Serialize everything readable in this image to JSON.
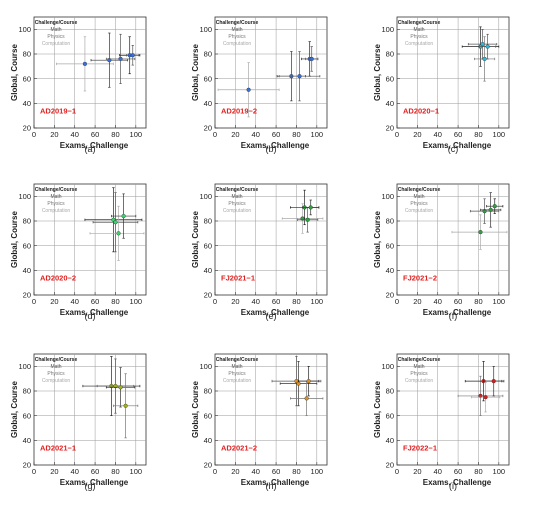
{
  "figure": {
    "legend_entries": [
      "Challenge/Course",
      "Math",
      "Physics",
      "Computation"
    ],
    "colors": {
      "legend_challenge": "#222222",
      "legend_math": "#555555",
      "legend_physics": "#777777",
      "legend_computation": "#aaaaaa",
      "annotation": "#e02020",
      "grid": "#9a9a9a"
    }
  },
  "chart_data": [
    {
      "type": "scatter",
      "panel": "(a)",
      "annotation": "AD2019−1",
      "xlabel": "Exams, Challenge",
      "ylabel": "Global, Course",
      "xlim": [
        0,
        110
      ],
      "ylim": [
        20,
        110
      ],
      "xticks": [
        0,
        20,
        40,
        60,
        80,
        100
      ],
      "yticks": [
        20,
        40,
        60,
        80,
        100
      ],
      "grid": true,
      "legend_placement": "top-left",
      "series": [
        {
          "color": "#3a6fd8",
          "points": [
            {
              "x": 50,
              "y": 72,
              "xerr": 28,
              "yerr": 22,
              "err_color": "#aaaaaa"
            },
            {
              "x": 74,
              "y": 75,
              "xerr": 18,
              "yerr": 22,
              "err_color": "#333333"
            },
            {
              "x": 85,
              "y": 76,
              "xerr": 14,
              "yerr": 20,
              "err_color": "#555555"
            },
            {
              "x": 94,
              "y": 79,
              "xerr": 10,
              "yerr": 15,
              "err_color": "#222222"
            },
            {
              "x": 97,
              "y": 79,
              "xerr": 6,
              "yerr": 8,
              "err_color": "#555555"
            }
          ]
        }
      ]
    },
    {
      "type": "scatter",
      "panel": "(b)",
      "annotation": "AD2019−2",
      "xlabel": "Exams, Challenge",
      "ylabel": "Global, Course",
      "xlim": [
        0,
        110
      ],
      "ylim": [
        20,
        110
      ],
      "xticks": [
        0,
        20,
        40,
        60,
        80,
        100
      ],
      "yticks": [
        20,
        40,
        60,
        80,
        100
      ],
      "grid": true,
      "legend_placement": "top-left",
      "series": [
        {
          "color": "#3a6fd8",
          "points": [
            {
              "x": 33,
              "y": 51,
              "xerr": 30,
              "yerr": 22,
              "err_color": "#aaaaaa"
            },
            {
              "x": 75,
              "y": 62,
              "xerr": 14,
              "yerr": 20,
              "err_color": "#333333"
            },
            {
              "x": 83,
              "y": 62,
              "xerr": 20,
              "yerr": 20,
              "err_color": "#555555"
            },
            {
              "x": 93,
              "y": 76,
              "xerr": 8,
              "yerr": 14,
              "err_color": "#222222"
            },
            {
              "x": 95,
              "y": 76,
              "xerr": 6,
              "yerr": 10,
              "err_color": "#555555"
            }
          ]
        }
      ]
    },
    {
      "type": "scatter",
      "panel": "(c)",
      "annotation": "AD2020−1",
      "xlabel": "Exams, Challenge",
      "ylabel": "Global, Course",
      "xlim": [
        0,
        110
      ],
      "ylim": [
        20,
        110
      ],
      "xticks": [
        0,
        20,
        40,
        60,
        80,
        100
      ],
      "yticks": [
        20,
        40,
        60,
        80,
        100
      ],
      "grid": true,
      "legend_placement": "top-left",
      "series": [
        {
          "color": "#30b8d8",
          "points": [
            {
              "x": 82,
              "y": 86,
              "xerr": 18,
              "yerr": 16,
              "err_color": "#222222"
            },
            {
              "x": 84,
              "y": 88,
              "xerr": 14,
              "yerr": 12,
              "err_color": "#555555"
            },
            {
              "x": 86,
              "y": 76,
              "xerr": 10,
              "yerr": 18,
              "err_color": "#777777"
            },
            {
              "x": 89,
              "y": 86,
              "xerr": 8,
              "yerr": 10,
              "err_color": "#555555"
            }
          ]
        }
      ]
    },
    {
      "type": "scatter",
      "panel": "(d)",
      "annotation": "AD2020−2",
      "xlabel": "Exams, Challenge",
      "ylabel": "Global, Course",
      "xlim": [
        0,
        110
      ],
      "ylim": [
        20,
        110
      ],
      "xticks": [
        0,
        20,
        40,
        60,
        80,
        100
      ],
      "yticks": [
        20,
        40,
        60,
        80,
        100
      ],
      "grid": true,
      "legend_placement": "top-left",
      "series": [
        {
          "color": "#40d070",
          "points": [
            {
              "x": 78,
              "y": 81,
              "xerr": 28,
              "yerr": 26,
              "err_color": "#222222"
            },
            {
              "x": 80,
              "y": 79,
              "xerr": 22,
              "yerr": 24,
              "err_color": "#555555"
            },
            {
              "x": 83,
              "y": 70,
              "xerr": 28,
              "yerr": 22,
              "err_color": "#aaaaaa"
            },
            {
              "x": 88,
              "y": 84,
              "xerr": 12,
              "yerr": 18,
              "err_color": "#333333"
            }
          ]
        }
      ]
    },
    {
      "type": "scatter",
      "panel": "(e)",
      "annotation": "FJ2021−1",
      "xlabel": "Exams, Challenge",
      "ylabel": "Global, Course",
      "xlim": [
        0,
        110
      ],
      "ylim": [
        20,
        110
      ],
      "xticks": [
        0,
        20,
        40,
        60,
        80,
        100
      ],
      "yticks": [
        20,
        40,
        60,
        80,
        100
      ],
      "grid": true,
      "legend_placement": "top-left",
      "series": [
        {
          "color": "#30a040",
          "points": [
            {
              "x": 86,
              "y": 82,
              "xerr": 20,
              "yerr": 12,
              "err_color": "#aaaaaa"
            },
            {
              "x": 88,
              "y": 91,
              "xerr": 14,
              "yerr": 14,
              "err_color": "#222222"
            },
            {
              "x": 91,
              "y": 81,
              "xerr": 10,
              "yerr": 10,
              "err_color": "#555555"
            },
            {
              "x": 94,
              "y": 91,
              "xerr": 8,
              "yerr": 6,
              "err_color": "#333333"
            }
          ]
        }
      ]
    },
    {
      "type": "scatter",
      "panel": "(f)",
      "annotation": "FJ2021−2",
      "xlabel": "Exams, Challenge",
      "ylabel": "Global, Course",
      "xlim": [
        0,
        110
      ],
      "ylim": [
        20,
        110
      ],
      "xticks": [
        0,
        20,
        40,
        60,
        80,
        100
      ],
      "yticks": [
        20,
        40,
        60,
        80,
        100
      ],
      "grid": true,
      "legend_placement": "top-left",
      "series": [
        {
          "color": "#30a040",
          "points": [
            {
              "x": 82,
              "y": 71,
              "xerr": 28,
              "yerr": 14,
              "err_color": "#aaaaaa"
            },
            {
              "x": 86,
              "y": 88,
              "xerr": 14,
              "yerr": 10,
              "err_color": "#555555"
            },
            {
              "x": 92,
              "y": 89,
              "xerr": 10,
              "yerr": 14,
              "err_color": "#333333"
            },
            {
              "x": 96,
              "y": 92,
              "xerr": 8,
              "yerr": 6,
              "err_color": "#222222"
            }
          ]
        }
      ]
    },
    {
      "type": "scatter",
      "panel": "(g)",
      "annotation": "AD2021−1",
      "xlabel": "Exams, Challenge",
      "ylabel": "Global, Course",
      "xlim": [
        0,
        110
      ],
      "ylim": [
        20,
        110
      ],
      "xticks": [
        0,
        20,
        40,
        60,
        80,
        100
      ],
      "yticks": [
        20,
        40,
        60,
        80,
        100
      ],
      "grid": true,
      "legend_placement": "top-left",
      "series": [
        {
          "color": "#a0b020",
          "points": [
            {
              "x": 76,
              "y": 84,
              "xerr": 28,
              "yerr": 24,
              "err_color": "#222222"
            },
            {
              "x": 80,
              "y": 84,
              "xerr": 18,
              "yerr": 22,
              "err_color": "#555555"
            },
            {
              "x": 85,
              "y": 83,
              "xerr": 14,
              "yerr": 16,
              "err_color": "#333333"
            },
            {
              "x": 90,
              "y": 68,
              "xerr": 12,
              "yerr": 26,
              "err_color": "#777777"
            }
          ]
        }
      ]
    },
    {
      "type": "scatter",
      "panel": "(h)",
      "annotation": "AD2021−2",
      "xlabel": "Exams, Challenge",
      "ylabel": "Global, Course",
      "xlim": [
        0,
        110
      ],
      "ylim": [
        20,
        110
      ],
      "xticks": [
        0,
        20,
        40,
        60,
        80,
        100
      ],
      "yticks": [
        20,
        40,
        60,
        80,
        100
      ],
      "grid": true,
      "legend_placement": "top-left",
      "series": [
        {
          "color": "#e09020",
          "points": [
            {
              "x": 80,
              "y": 88,
              "xerr": 24,
              "yerr": 20,
              "err_color": "#555555"
            },
            {
              "x": 82,
              "y": 86,
              "xerr": 18,
              "yerr": 18,
              "err_color": "#333333"
            },
            {
              "x": 90,
              "y": 74,
              "xerr": 16,
              "yerr": 14,
              "err_color": "#777777"
            },
            {
              "x": 92,
              "y": 88,
              "xerr": 10,
              "yerr": 12,
              "err_color": "#222222"
            }
          ]
        }
      ]
    },
    {
      "type": "scatter",
      "panel": "(i)",
      "annotation": "FJ2022−1",
      "xlabel": "Exams, Challenge",
      "ylabel": "Global, Course",
      "xlim": [
        0,
        110
      ],
      "ylim": [
        20,
        110
      ],
      "xticks": [
        0,
        20,
        40,
        60,
        80,
        100
      ],
      "yticks": [
        20,
        40,
        60,
        80,
        100
      ],
      "grid": true,
      "legend_placement": "top-left",
      "series": [
        {
          "color": "#d02020",
          "points": [
            {
              "x": 82,
              "y": 76,
              "xerr": 22,
              "yerr": 16,
              "err_color": "#777777"
            },
            {
              "x": 85,
              "y": 88,
              "xerr": 18,
              "yerr": 16,
              "err_color": "#222222"
            },
            {
              "x": 87,
              "y": 75,
              "xerr": 14,
              "yerr": 12,
              "err_color": "#aaaaaa"
            },
            {
              "x": 95,
              "y": 88,
              "xerr": 10,
              "yerr": 12,
              "err_color": "#333333"
            }
          ]
        }
      ]
    }
  ]
}
